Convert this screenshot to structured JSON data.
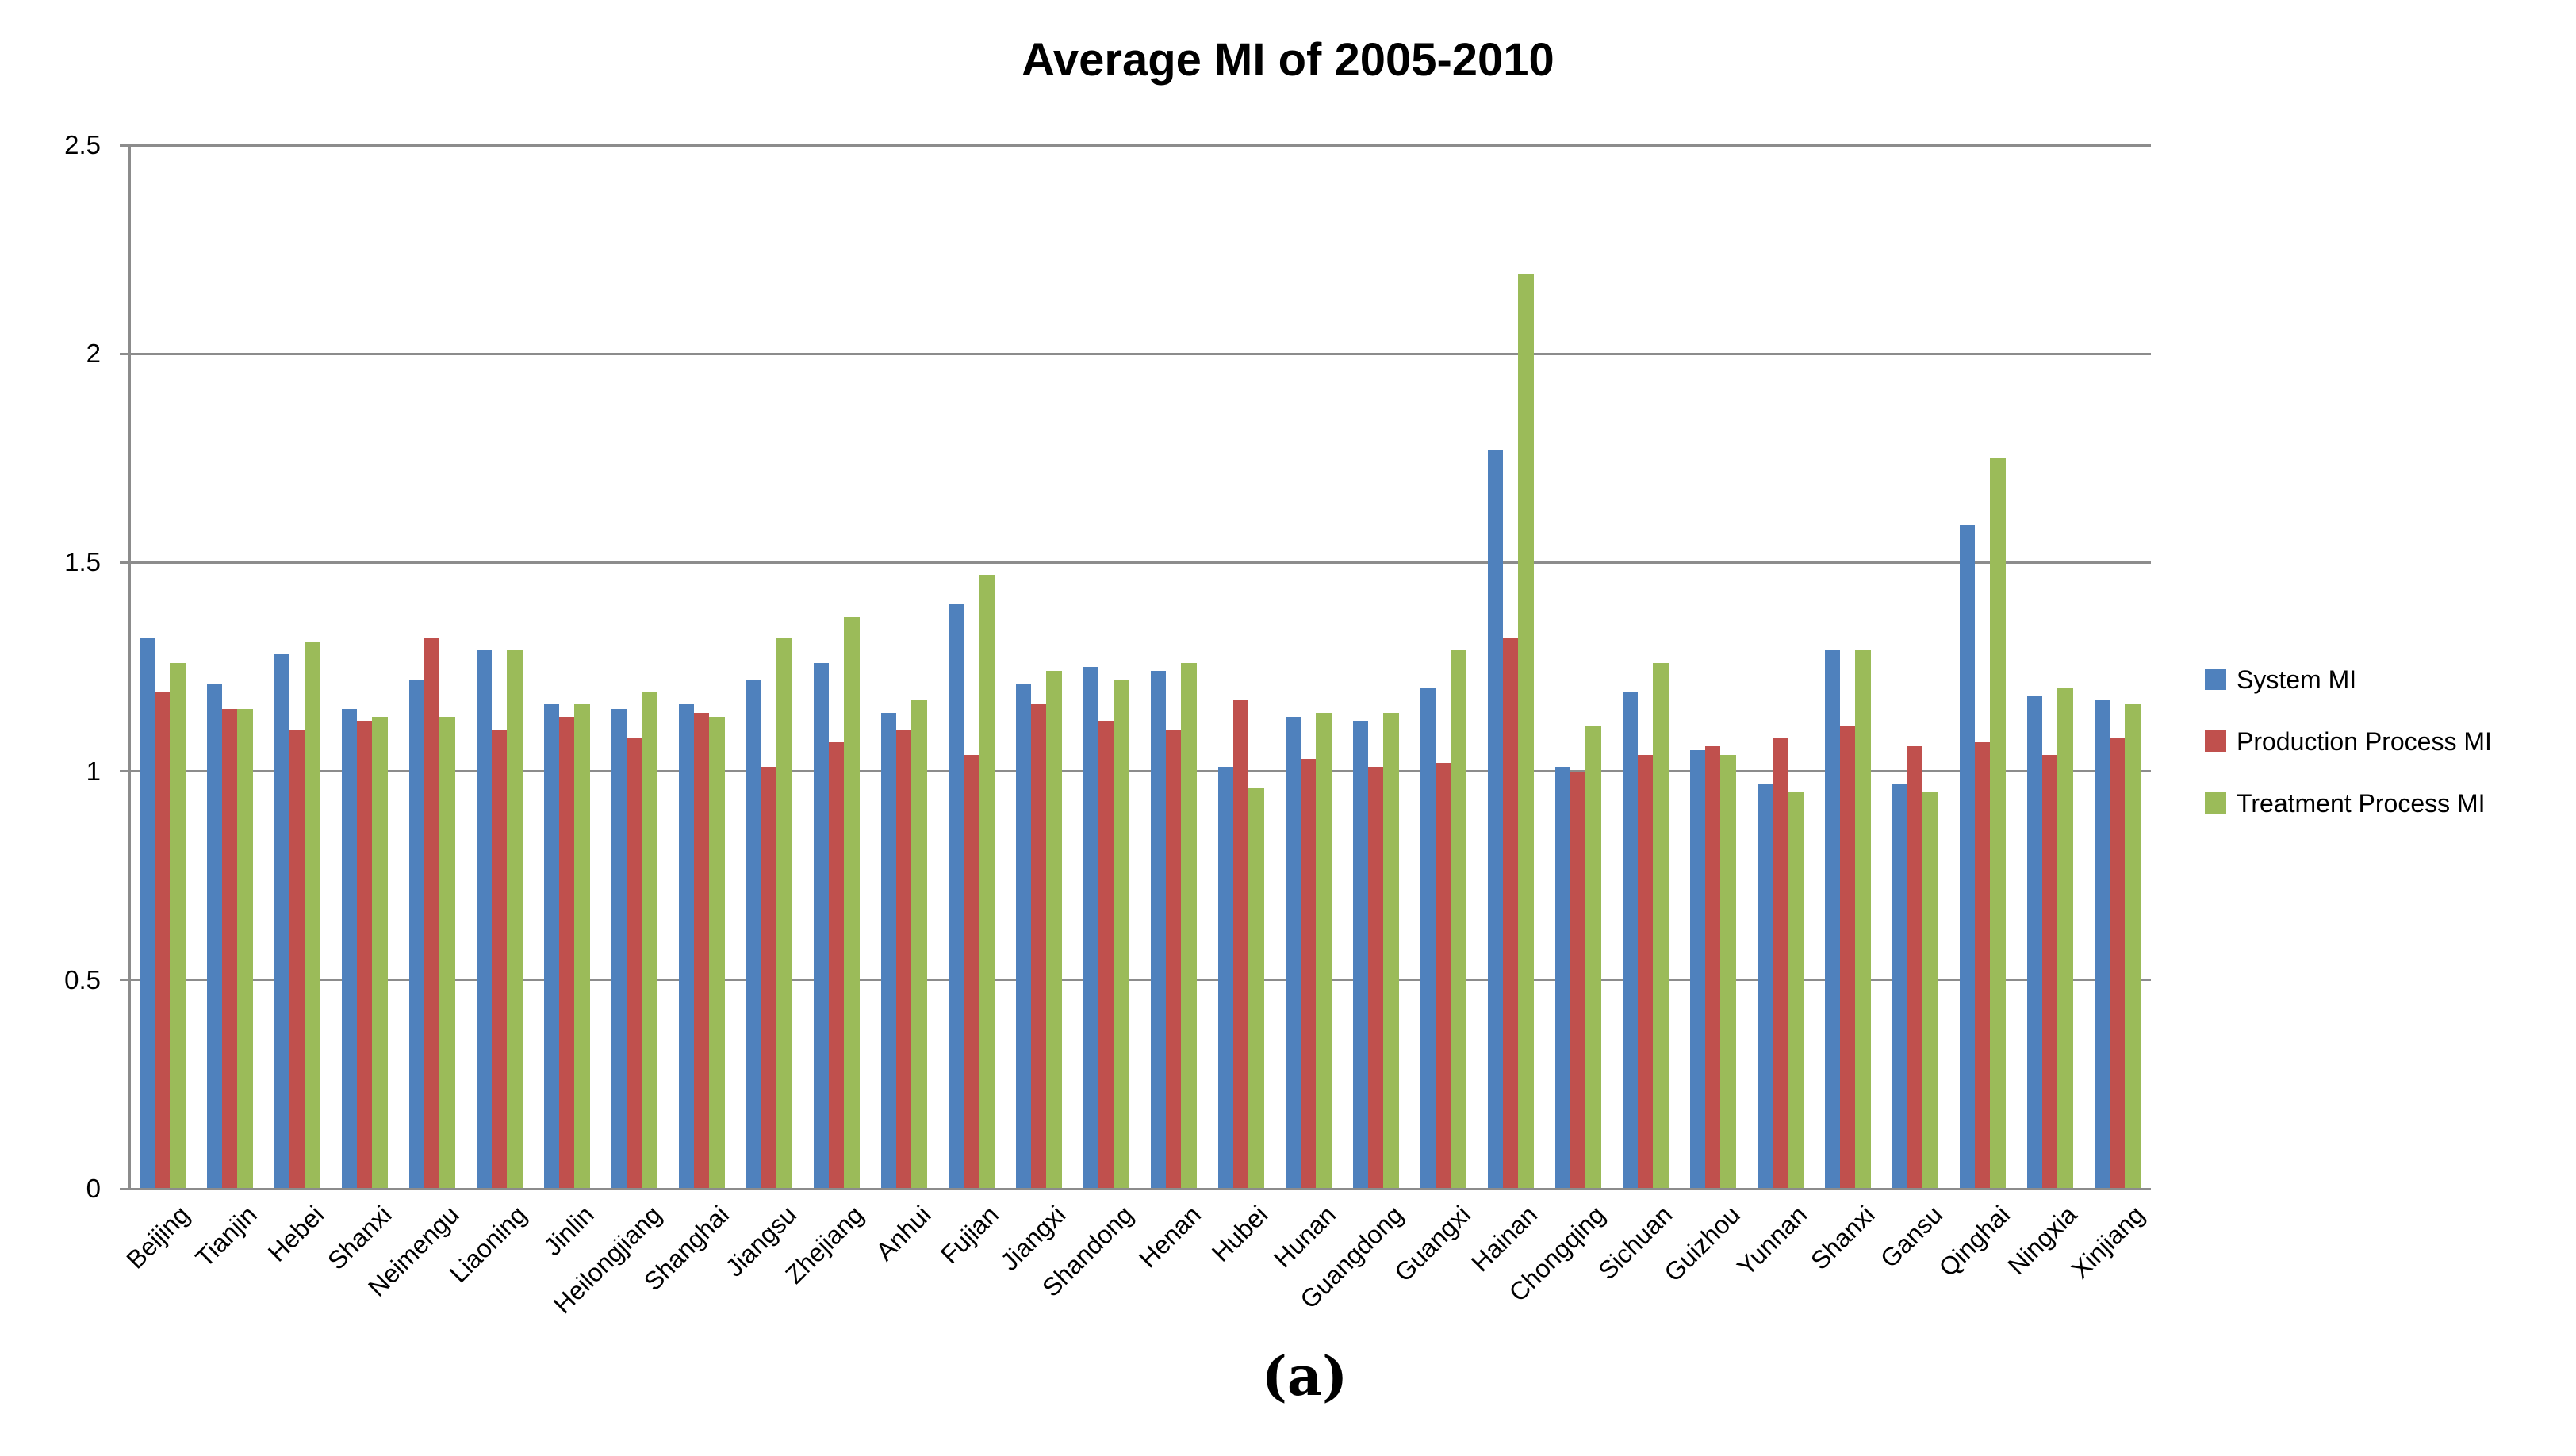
{
  "figure": {
    "title": "Average MI of 2005-2010",
    "caption": "(a)"
  },
  "chart_data": {
    "type": "bar",
    "title": "Average MI of 2005-2010",
    "categories": [
      "Beijing",
      "Tianjin",
      "Hebei",
      "Shanxi",
      "Neimengu",
      "Liaoning",
      "Jinlin",
      "Heilongjiang",
      "Shanghai",
      "Jiangsu",
      "Zhejiang",
      "Anhui",
      "Fujian",
      "Jiangxi",
      "Shandong",
      "Henan",
      "Hubei",
      "Hunan",
      "Guangdong",
      "Guangxi",
      "Hainan",
      "Chongqing",
      "Sichuan",
      "Guizhou",
      "Yunnan",
      "Shanxi",
      "Gansu",
      "Qinghai",
      "Ningxia",
      "Xinjiang"
    ],
    "series": [
      {
        "name": "System MI",
        "color": "#4F81BD",
        "values": [
          1.32,
          1.21,
          1.28,
          1.15,
          1.22,
          1.29,
          1.16,
          1.15,
          1.16,
          1.22,
          1.26,
          1.14,
          1.4,
          1.21,
          1.25,
          1.24,
          1.01,
          1.13,
          1.12,
          1.2,
          1.77,
          1.01,
          1.19,
          1.05,
          0.97,
          1.29,
          0.97,
          1.59,
          1.18,
          1.17
        ]
      },
      {
        "name": "Production Process MI",
        "color": "#C0504D",
        "values": [
          1.19,
          1.15,
          1.1,
          1.12,
          1.32,
          1.1,
          1.13,
          1.08,
          1.14,
          1.01,
          1.07,
          1.1,
          1.04,
          1.16,
          1.12,
          1.1,
          1.17,
          1.03,
          1.01,
          1.02,
          1.32,
          1.0,
          1.04,
          1.06,
          1.08,
          1.11,
          1.06,
          1.07,
          1.04,
          1.08
        ]
      },
      {
        "name": "Treatment Process MI",
        "color": "#9BBB59",
        "values": [
          1.26,
          1.15,
          1.31,
          1.13,
          1.13,
          1.29,
          1.16,
          1.19,
          1.13,
          1.32,
          1.37,
          1.17,
          1.47,
          1.24,
          1.22,
          1.26,
          0.96,
          1.14,
          1.14,
          1.29,
          2.19,
          1.11,
          1.26,
          1.04,
          0.95,
          1.29,
          0.95,
          1.75,
          1.2,
          1.16
        ]
      }
    ],
    "xlabel": "",
    "ylabel": "",
    "ylim": [
      0,
      2.5
    ],
    "yticks": [
      0,
      0.5,
      1,
      1.5,
      2,
      2.5
    ],
    "ytick_labels": [
      "0",
      "0.5",
      "1",
      "1.5",
      "2",
      "2.5"
    ],
    "grid": true,
    "legend_position": "right",
    "gridline_color": "#8c8c8c"
  }
}
